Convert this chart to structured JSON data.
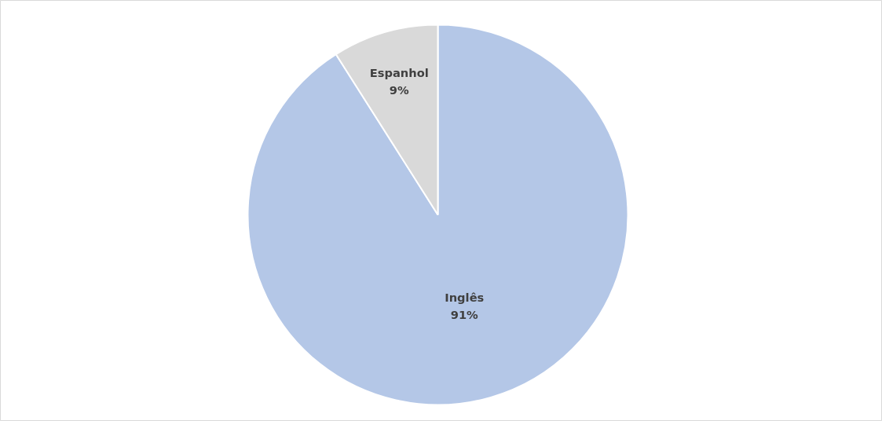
{
  "chart_data": {
    "type": "pie",
    "categories": [
      "Inglês",
      "Espanhol"
    ],
    "values": [
      91,
      9
    ],
    "colors": [
      "#b4c7e7",
      "#d9d9d9"
    ],
    "value_labels": [
      "91%",
      "9%"
    ]
  }
}
